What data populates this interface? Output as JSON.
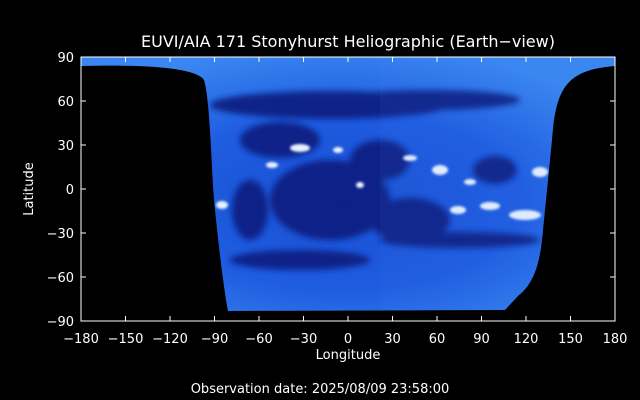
{
  "title": "EUVI/AIA 171 Stonyhurst Heliographic (Earth−view)",
  "footer": "Observation date: 2025/08/09 23:58:00",
  "chart_data": {
    "type": "heatmap",
    "title": "EUVI/AIA 171 Stonyhurst Heliographic (Earth−view)",
    "xlabel": "Longitude",
    "ylabel": "Latitude",
    "xlim": [
      -180,
      180
    ],
    "ylim": [
      -90,
      90
    ],
    "x_ticks": [
      -180,
      -150,
      -120,
      -90,
      -60,
      -30,
      0,
      30,
      60,
      90,
      120,
      150,
      180
    ],
    "y_ticks": [
      -90,
      -60,
      -30,
      0,
      30,
      60,
      90
    ],
    "x_tick_labels": [
      "−180",
      "−150",
      "−120",
      "−90",
      "−60",
      "−30",
      "0",
      "30",
      "60",
      "90",
      "120",
      "150",
      "180"
    ],
    "y_tick_labels": [
      "−90",
      "−60",
      "−30",
      "0",
      "30",
      "60",
      "90"
    ],
    "grid": false,
    "colormap": [
      "#000000",
      "#001a66",
      "#0a4ad6",
      "#4a90ff",
      "#bfdcff",
      "#ffffff"
    ],
    "background": "#000000"
  }
}
